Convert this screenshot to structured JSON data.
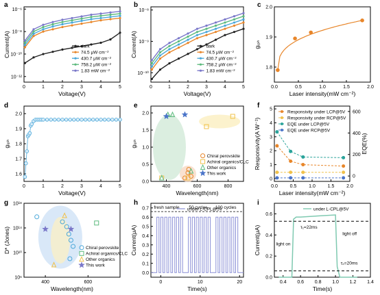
{
  "chart_data": [
    {
      "panel": "a",
      "type": "line",
      "ylabel": "Current(A)",
      "xlabel": "Voltage(V)",
      "xlim": [
        0,
        5
      ],
      "xticks": [
        "0",
        "1",
        "2",
        "3",
        "4",
        "5"
      ],
      "yticks": [
        "10⁻¹²",
        "10⁻¹⁰",
        "10⁻⁸",
        "10⁻⁶"
      ],
      "log_y": true,
      "ylim_exp": [
        -12.5,
        -5.8
      ],
      "series": [
        {
          "name": "dark",
          "color": "#222222",
          "x": [
            0.05,
            0.5,
            1,
            1.5,
            2,
            2.5,
            3,
            3.5,
            4,
            4.5,
            5
          ],
          "y_exp": [
            -10.8,
            -10.3,
            -10.0,
            -9.8,
            -9.6,
            -9.45,
            -9.3,
            -9.15,
            -9.0,
            -8.7,
            -8.1
          ]
        },
        {
          "name": "74.5 μW cm⁻²",
          "color": "#e8862a",
          "x": [
            0.05,
            0.5,
            1,
            1.5,
            2,
            2.5,
            3,
            3.5,
            4,
            4.5,
            5
          ],
          "y_exp": [
            -9.4,
            -8.4,
            -8.0,
            -7.8,
            -7.6,
            -7.45,
            -7.3,
            -7.15,
            -7.0,
            -6.9,
            -6.8
          ]
        },
        {
          "name": "430.7 μW cm⁻²",
          "color": "#4aa7d9",
          "x": [
            0.05,
            0.5,
            1,
            1.5,
            2,
            2.5,
            3,
            3.5,
            4,
            4.5,
            5
          ],
          "y_exp": [
            -9.2,
            -8.2,
            -7.8,
            -7.55,
            -7.35,
            -7.2,
            -7.05,
            -6.9,
            -6.8,
            -6.7,
            -6.6
          ]
        },
        {
          "name": "758.2 μW cm⁻²",
          "color": "#5cba7d",
          "x": [
            0.05,
            0.5,
            1,
            1.5,
            2,
            2.5,
            3,
            3.5,
            4,
            4.5,
            5
          ],
          "y_exp": [
            -9.0,
            -8.0,
            -7.6,
            -7.35,
            -7.15,
            -7.0,
            -6.85,
            -6.7,
            -6.6,
            -6.5,
            -6.4
          ]
        },
        {
          "name": "1.83 mW cm⁻²",
          "color": "#7a78c9",
          "x": [
            0.05,
            0.5,
            1,
            1.5,
            2,
            2.5,
            3,
            3.5,
            4,
            4.5,
            5
          ],
          "y_exp": [
            -8.8,
            -7.8,
            -7.4,
            -7.15,
            -6.95,
            -6.8,
            -6.65,
            -6.5,
            -6.4,
            -6.3,
            -6.2
          ]
        }
      ]
    },
    {
      "panel": "b",
      "type": "line",
      "ylabel": "Current(A)",
      "xlabel": "Voltage(V)",
      "xlim": [
        0,
        5
      ],
      "xticks": [
        "0",
        "1",
        "2",
        "3",
        "4",
        "5"
      ],
      "yticks": [
        "10⁻¹⁰",
        "10⁻⁹",
        "10⁻⁸"
      ],
      "log_y": true,
      "ylim_exp": [
        -10.3,
        -7.9
      ],
      "series": [
        {
          "name": "dark",
          "color": "#222222",
          "x": [
            0.05,
            0.5,
            1,
            1.5,
            2,
            2.5,
            3,
            3.5,
            4,
            4.5,
            5
          ],
          "y_exp": [
            -10.2,
            -9.9,
            -9.7,
            -9.55,
            -9.4,
            -9.25,
            -9.1,
            -8.95,
            -8.8,
            -8.7,
            -8.6
          ]
        },
        {
          "name": "74.5 μW cm⁻²",
          "color": "#e8862a",
          "x": [
            0.05,
            0.5,
            1,
            1.5,
            2,
            2.5,
            3,
            3.5,
            4,
            4.5,
            5
          ],
          "y_exp": [
            -9.9,
            -9.55,
            -9.35,
            -9.2,
            -9.05,
            -8.9,
            -8.8,
            -8.7,
            -8.6,
            -8.5,
            -8.4
          ]
        },
        {
          "name": "430.7 μW cm⁻²",
          "color": "#4aa7d9",
          "x": [
            0.05,
            0.5,
            1,
            1.5,
            2,
            2.5,
            3,
            3.5,
            4,
            4.5,
            5
          ],
          "y_exp": [
            -9.8,
            -9.45,
            -9.25,
            -9.1,
            -8.95,
            -8.8,
            -8.7,
            -8.6,
            -8.5,
            -8.4,
            -8.3
          ]
        },
        {
          "name": "758.2 μW cm⁻²",
          "color": "#5cba7d",
          "x": [
            0.05,
            0.5,
            1,
            1.5,
            2,
            2.5,
            3,
            3.5,
            4,
            4.5,
            5
          ],
          "y_exp": [
            -9.7,
            -9.35,
            -9.15,
            -9.0,
            -8.85,
            -8.7,
            -8.6,
            -8.5,
            -8.4,
            -8.3,
            -8.2
          ]
        },
        {
          "name": "1.83 mW cm⁻²",
          "color": "#7a78c9",
          "x": [
            0.05,
            0.5,
            1,
            1.5,
            2,
            2.5,
            3,
            3.5,
            4,
            4.5,
            5
          ],
          "y_exp": [
            -9.6,
            -9.25,
            -9.05,
            -8.9,
            -8.75,
            -8.6,
            -8.5,
            -8.4,
            -8.3,
            -8.2,
            -8.1
          ]
        }
      ]
    },
    {
      "panel": "c",
      "type": "scatter",
      "ylabel": "gᵢₚₕ",
      "xlabel": "Laser intensity(mW cm⁻²)",
      "xlim": [
        0,
        2.0
      ],
      "ylim": [
        1.75,
        2.0
      ],
      "xticks": [
        "0.0",
        "0.5",
        "1.0",
        "1.5",
        "2.0"
      ],
      "yticks": [
        "1.8",
        "1.9",
        "2.0"
      ],
      "color": "#e8862a",
      "x": [
        0.07,
        0.43,
        0.76,
        1.83
      ],
      "y": [
        1.79,
        1.895,
        1.915,
        1.955
      ]
    },
    {
      "panel": "d",
      "type": "scatter",
      "ylabel": "gᵢₚₕ",
      "xlabel": "Voltage(V)",
      "xlim": [
        0,
        5
      ],
      "ylim": [
        1.55,
        2.05
      ],
      "xticks": [
        "0",
        "1",
        "2",
        "3",
        "4",
        "5"
      ],
      "yticks": [
        "1.6",
        "1.7",
        "1.8",
        "1.9",
        "2.0"
      ],
      "color": "#4aa7d9",
      "x": [
        0.05,
        0.1,
        0.15,
        0.2,
        0.25,
        0.3,
        0.35,
        0.4,
        0.5,
        0.6,
        0.7,
        0.8,
        0.9,
        1.0,
        1.2,
        1.4,
        1.6,
        1.8,
        2.0,
        2.2,
        2.4,
        2.6,
        2.8,
        3.0,
        3.2,
        3.4,
        3.6,
        3.8,
        4.0,
        4.2,
        4.4,
        4.6,
        4.8,
        5.0
      ],
      "y": [
        1.58,
        1.67,
        1.75,
        1.85,
        1.86,
        1.87,
        1.92,
        1.93,
        1.95,
        1.96,
        1.96,
        1.96,
        1.96,
        1.96,
        1.96,
        1.96,
        1.96,
        1.96,
        1.96,
        1.96,
        1.96,
        1.96,
        1.96,
        1.96,
        1.96,
        1.96,
        1.96,
        1.96,
        1.96,
        1.96,
        1.96,
        1.96,
        1.96,
        1.96
      ]
    },
    {
      "panel": "e",
      "type": "scatter",
      "ylabel": "gᵢₚₕ",
      "xlabel": "Wavelength(nm)",
      "xlim": [
        300,
        900
      ],
      "ylim": [
        0,
        2.2
      ],
      "xticks": [
        "400",
        "600",
        "800"
      ],
      "yticks": [
        "0.0",
        "0.5",
        "1.0",
        "1.5",
        "2.0"
      ],
      "legend": [
        "Chiral perovskite",
        "Achiral organics/CLC",
        "Other organics",
        "This work"
      ],
      "groups": [
        {
          "name": "Chiral perovskite",
          "marker": "circle",
          "color": "#e8862a",
          "x": [
            520,
            540,
            545,
            560
          ],
          "y": [
            0.1,
            0.25,
            0.35,
            0.15
          ]
        },
        {
          "name": "Achiral organics/CLC",
          "marker": "square",
          "color": "#f0c14b",
          "x": [
            660,
            830,
            370,
            540
          ],
          "y": [
            1.6,
            1.9,
            0.1,
            0.1
          ]
        },
        {
          "name": "Other organics",
          "marker": "triangle",
          "color": "#5cba7d",
          "x": [
            410,
            440,
            560,
            370
          ],
          "y": [
            1.95,
            1.95,
            0.3,
            0.1
          ]
        },
        {
          "name": "This work",
          "marker": "star",
          "color": "#4a74c9",
          "x": [
            400,
            520
          ],
          "y": [
            1.9,
            1.95
          ]
        }
      ]
    },
    {
      "panel": "f",
      "type": "line",
      "ylabel": "Responsivity(A W⁻¹)",
      "ylabel2": "EQE(%)",
      "xlabel": "Laser intensity(mW cm⁻²)",
      "xlim": [
        0,
        2.0
      ],
      "ylim": [
        -0.2,
        5.2
      ],
      "ylim2": [
        -50,
        650
      ],
      "xticks": [
        "0.0",
        "0.5",
        "1.0",
        "1.5",
        "2.0"
      ],
      "yticks": [
        "0",
        "1",
        "2",
        "3",
        "4",
        "5"
      ],
      "yticks2": [
        "0",
        "200",
        "400",
        "600"
      ],
      "series": [
        {
          "name": "Responsivity under LCP@5V",
          "color": "#e8862a",
          "x": [
            0.07,
            0.43,
            0.76,
            1.83
          ],
          "y": [
            2.35,
            1.25,
            1.0,
            0.9
          ]
        },
        {
          "name": "Responsivity under RCP@5V",
          "color": "#f0c14b",
          "x": [
            0.07,
            0.43,
            0.76,
            1.83
          ],
          "y": [
            0.45,
            0.45,
            0.45,
            0.45
          ]
        },
        {
          "name": "EQE under LCP@5V",
          "color": "#2aa39a",
          "x": [
            0.07,
            0.43,
            0.76,
            1.83
          ],
          "y": [
            3.35,
            1.95,
            1.55,
            1.5
          ]
        },
        {
          "name": "EQE under RCP@5V",
          "color": "#4a74c9",
          "x": [
            0.07,
            0.43,
            0.76,
            1.83
          ],
          "y": [
            0.05,
            0.05,
            0.05,
            0.05
          ]
        }
      ]
    },
    {
      "panel": "g",
      "type": "scatter",
      "ylabel": "D* (Jones)",
      "xlabel": "Wavelength(nm)",
      "log_y": true,
      "xlim": [
        300,
        750
      ],
      "ylim_exp": [
        6,
        18
      ],
      "xticks": [
        "400",
        "600"
      ],
      "yticks": [
        "10⁶",
        "10¹⁰",
        "10¹⁴",
        "10¹⁸"
      ],
      "legend": [
        "Chiral perovskite",
        "Achiral organics/CLC",
        "Other organics",
        "This work"
      ],
      "groups": [
        {
          "name": "Chiral perovskite",
          "marker": "circle",
          "color": "#4aa7d9",
          "x": [
            360,
            480,
            500,
            510,
            520,
            530,
            515
          ],
          "y_exp": [
            15.8,
            15.0,
            14.2,
            13.0,
            12.0,
            11.0,
            9.0
          ]
        },
        {
          "name": "Achiral organics/CLC",
          "marker": "square",
          "color": "#5cba7d",
          "x": [
            640
          ],
          "y_exp": [
            14.8
          ]
        },
        {
          "name": "Other organics",
          "marker": "triangle",
          "color": "#f0c14b",
          "x": [
            490,
            440
          ],
          "y_exp": [
            16.0,
            8.0
          ]
        },
        {
          "name": "This work",
          "marker": "star",
          "color": "#7a78c9",
          "x": [
            400,
            520
          ],
          "y_exp": [
            13.8,
            13.8
          ]
        }
      ]
    },
    {
      "panel": "h",
      "type": "line",
      "ylabel": "Current(μA)",
      "xlabel": "Time(s)",
      "xlim": [
        -2.5,
        21
      ],
      "ylim": [
        -0.05,
        0.75
      ],
      "xticks": [
        "0",
        "10",
        "20"
      ],
      "yticks": [
        "0.0",
        "0.1",
        "0.2",
        "0.3",
        "0.4",
        "0.5",
        "0.6",
        "0.7"
      ],
      "legend": [
        "under L-CPL@5V"
      ],
      "annotations": [
        "fresh sample",
        "50 cycles",
        "100 cycles"
      ],
      "color": "#8a8fd6",
      "on_level": 0.6,
      "off_level": 0.0,
      "pulse_groups": [
        [
          -1.0,
          0.0,
          1.0,
          2.0,
          3.0,
          4.0,
          5.0
        ],
        [
          7.0,
          8.0,
          9.0,
          10.0,
          11.0,
          12.0
        ],
        [
          14.0,
          15.0,
          16.0,
          17.0,
          18.0,
          19.0
        ]
      ],
      "pulse_width": 0.55
    },
    {
      "panel": "i",
      "type": "line",
      "ylabel": "Current(μA)",
      "xlabel": "Time(s)",
      "xlim": [
        0.3,
        1.4
      ],
      "ylim": [
        0,
        0.7
      ],
      "xticks": [
        "0.4",
        "0.6",
        "0.8",
        "1.0",
        "1.2",
        "1.4"
      ],
      "yticks": [
        "0.0",
        "0.2",
        "0.4",
        "0.6"
      ],
      "legend": [
        "under L-CPL@5V"
      ],
      "color": "#7ec9b0",
      "x": [
        0.35,
        0.5,
        0.52,
        0.55,
        0.6,
        0.8,
        1.0,
        1.02,
        1.05,
        1.25
      ],
      "y": [
        0.0,
        0.0,
        0.55,
        0.57,
        0.57,
        0.58,
        0.59,
        0.1,
        0.0,
        0.0
      ],
      "annotations": [
        "τ₁=22ms",
        "τ₂=20ms",
        "light on",
        "light off"
      ],
      "ref_lines": [
        0.53,
        0.06
      ]
    }
  ]
}
